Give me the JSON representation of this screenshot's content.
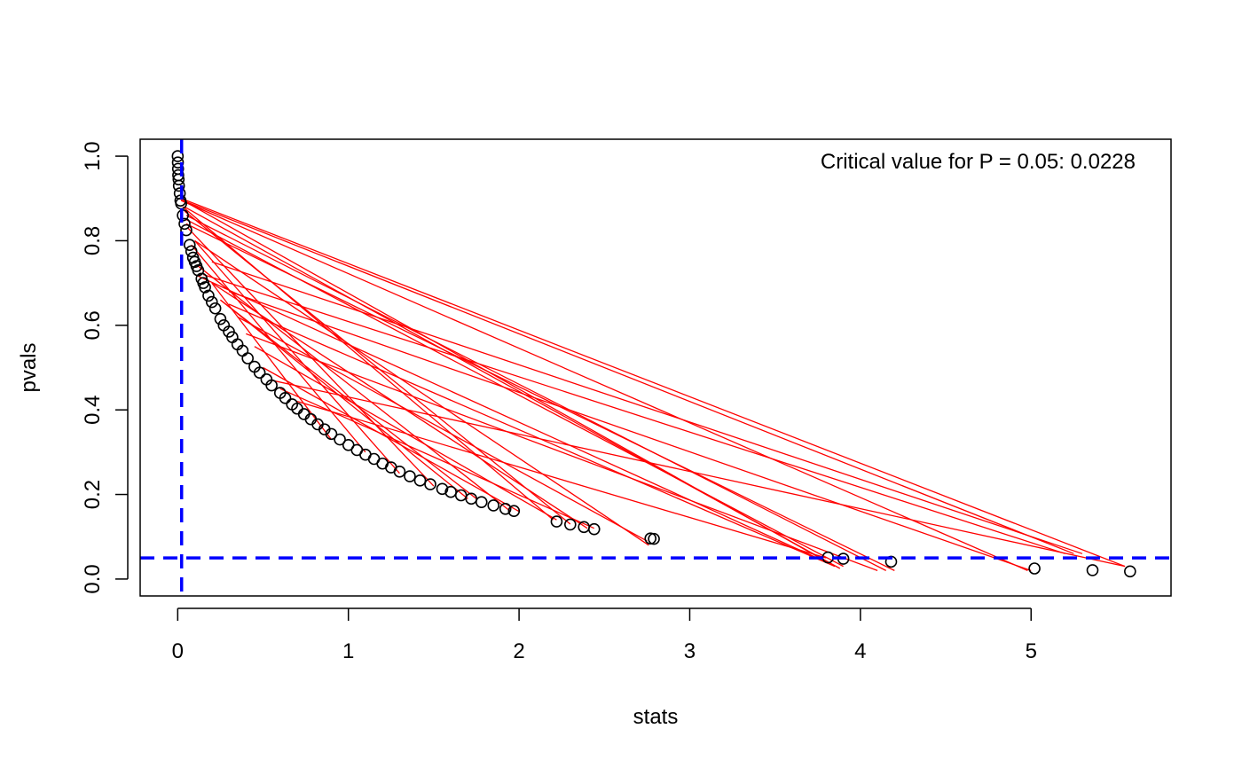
{
  "chart_data": {
    "type": "scatter",
    "title": "",
    "xlabel": "stats",
    "ylabel": "pvals",
    "xlim": [
      -0.22,
      5.82
    ],
    "ylim": [
      -0.04,
      1.04
    ],
    "x_ticks": [
      0,
      1,
      2,
      3,
      4,
      5
    ],
    "x_tick_labels": [
      "0",
      "1",
      "2",
      "3",
      "4",
      "5"
    ],
    "y_ticks": [
      0.0,
      0.2,
      0.4,
      0.6,
      0.8,
      1.0
    ],
    "y_tick_labels": [
      "0.0",
      "0.2",
      "0.4",
      "0.6",
      "0.8",
      "1.0"
    ],
    "grid": false,
    "annotation": "Critical value for P = 0.05: 0.0228",
    "annotation_position": "top-right",
    "critical_stat": 0.0228,
    "critical_pval": 0.05,
    "colors": {
      "points": "#000000",
      "lines": "#ff0000",
      "reference_lines": "#0000ff"
    },
    "points": [
      {
        "x": 0.0,
        "y": 1.0
      },
      {
        "x": 0.001,
        "y": 0.985
      },
      {
        "x": 0.002,
        "y": 0.97
      },
      {
        "x": 0.003,
        "y": 0.955
      },
      {
        "x": 0.005,
        "y": 0.945
      },
      {
        "x": 0.007,
        "y": 0.93
      },
      {
        "x": 0.012,
        "y": 0.912
      },
      {
        "x": 0.016,
        "y": 0.895
      },
      {
        "x": 0.02,
        "y": 0.888
      },
      {
        "x": 0.03,
        "y": 0.86
      },
      {
        "x": 0.04,
        "y": 0.84
      },
      {
        "x": 0.05,
        "y": 0.825
      },
      {
        "x": 0.07,
        "y": 0.79
      },
      {
        "x": 0.08,
        "y": 0.775
      },
      {
        "x": 0.09,
        "y": 0.76
      },
      {
        "x": 0.1,
        "y": 0.75
      },
      {
        "x": 0.11,
        "y": 0.74
      },
      {
        "x": 0.12,
        "y": 0.73
      },
      {
        "x": 0.14,
        "y": 0.71
      },
      {
        "x": 0.15,
        "y": 0.7
      },
      {
        "x": 0.16,
        "y": 0.69
      },
      {
        "x": 0.18,
        "y": 0.67
      },
      {
        "x": 0.2,
        "y": 0.655
      },
      {
        "x": 0.22,
        "y": 0.64
      },
      {
        "x": 0.25,
        "y": 0.615
      },
      {
        "x": 0.27,
        "y": 0.6
      },
      {
        "x": 0.3,
        "y": 0.585
      },
      {
        "x": 0.32,
        "y": 0.572
      },
      {
        "x": 0.35,
        "y": 0.555
      },
      {
        "x": 0.38,
        "y": 0.54
      },
      {
        "x": 0.41,
        "y": 0.522
      },
      {
        "x": 0.45,
        "y": 0.502
      },
      {
        "x": 0.48,
        "y": 0.488
      },
      {
        "x": 0.52,
        "y": 0.472
      },
      {
        "x": 0.55,
        "y": 0.458
      },
      {
        "x": 0.6,
        "y": 0.44
      },
      {
        "x": 0.63,
        "y": 0.428
      },
      {
        "x": 0.67,
        "y": 0.413
      },
      {
        "x": 0.7,
        "y": 0.403
      },
      {
        "x": 0.74,
        "y": 0.39
      },
      {
        "x": 0.78,
        "y": 0.378
      },
      {
        "x": 0.82,
        "y": 0.366
      },
      {
        "x": 0.86,
        "y": 0.354
      },
      {
        "x": 0.9,
        "y": 0.343
      },
      {
        "x": 0.95,
        "y": 0.33
      },
      {
        "x": 1.0,
        "y": 0.317
      },
      {
        "x": 1.05,
        "y": 0.305
      },
      {
        "x": 1.1,
        "y": 0.294
      },
      {
        "x": 1.15,
        "y": 0.284
      },
      {
        "x": 1.2,
        "y": 0.273
      },
      {
        "x": 1.25,
        "y": 0.264
      },
      {
        "x": 1.3,
        "y": 0.254
      },
      {
        "x": 1.36,
        "y": 0.243
      },
      {
        "x": 1.42,
        "y": 0.233
      },
      {
        "x": 1.48,
        "y": 0.224
      },
      {
        "x": 1.55,
        "y": 0.213
      },
      {
        "x": 1.6,
        "y": 0.206
      },
      {
        "x": 1.66,
        "y": 0.198
      },
      {
        "x": 1.72,
        "y": 0.19
      },
      {
        "x": 1.78,
        "y": 0.182
      },
      {
        "x": 1.85,
        "y": 0.174
      },
      {
        "x": 1.92,
        "y": 0.166
      },
      {
        "x": 1.97,
        "y": 0.161
      },
      {
        "x": 2.22,
        "y": 0.136
      },
      {
        "x": 2.3,
        "y": 0.129
      },
      {
        "x": 2.38,
        "y": 0.123
      },
      {
        "x": 2.44,
        "y": 0.118
      },
      {
        "x": 2.77,
        "y": 0.096
      },
      {
        "x": 2.79,
        "y": 0.095
      },
      {
        "x": 3.81,
        "y": 0.051
      },
      {
        "x": 3.9,
        "y": 0.048
      },
      {
        "x": 4.18,
        "y": 0.041
      },
      {
        "x": 5.02,
        "y": 0.025
      },
      {
        "x": 5.36,
        "y": 0.021
      },
      {
        "x": 5.58,
        "y": 0.018
      }
    ],
    "line_x": [
      0.02,
      5.55,
      0.03,
      5.25,
      0.01,
      3.85,
      0.05,
      4.15,
      0.02,
      4.98,
      0.1,
      2.76,
      0.04,
      3.88,
      0.2,
      5.3,
      0.03,
      2.2,
      0.1,
      3.8,
      0.12,
      1.95,
      0.05,
      4.2,
      0.3,
      5.0,
      0.2,
      2.4,
      0.05,
      3.9,
      0.25,
      1.75,
      0.04,
      2.3,
      0.15,
      5.2,
      0.35,
      2.75,
      0.06,
      1.5,
      0.3,
      3.85,
      0.45,
      2.22,
      0.1,
      1.3,
      0.4,
      4.1,
      0.5,
      2.0,
      0.08,
      1.1,
      0.6,
      2.44,
      0.2,
      0.9,
      0.7,
      3.8,
      0.25,
      1.7,
      0.55,
      5.55
    ],
    "line_y": [
      0.9,
      0.03,
      0.895,
      0.06,
      0.9,
      0.03,
      0.86,
      0.02,
      0.895,
      0.02,
      0.8,
      0.08,
      0.88,
      0.025,
      0.75,
      0.06,
      0.88,
      0.14,
      0.72,
      0.04,
      0.74,
      0.16,
      0.84,
      0.02,
      0.68,
      0.02,
      0.7,
      0.12,
      0.85,
      0.03,
      0.66,
      0.19,
      0.87,
      0.13,
      0.72,
      0.06,
      0.62,
      0.09,
      0.83,
      0.22,
      0.65,
      0.03,
      0.55,
      0.14,
      0.8,
      0.25,
      0.58,
      0.02,
      0.5,
      0.16,
      0.79,
      0.3,
      0.45,
      0.12,
      0.7,
      0.33,
      0.42,
      0.05,
      0.66,
      0.19,
      0.47,
      0.03
    ]
  }
}
